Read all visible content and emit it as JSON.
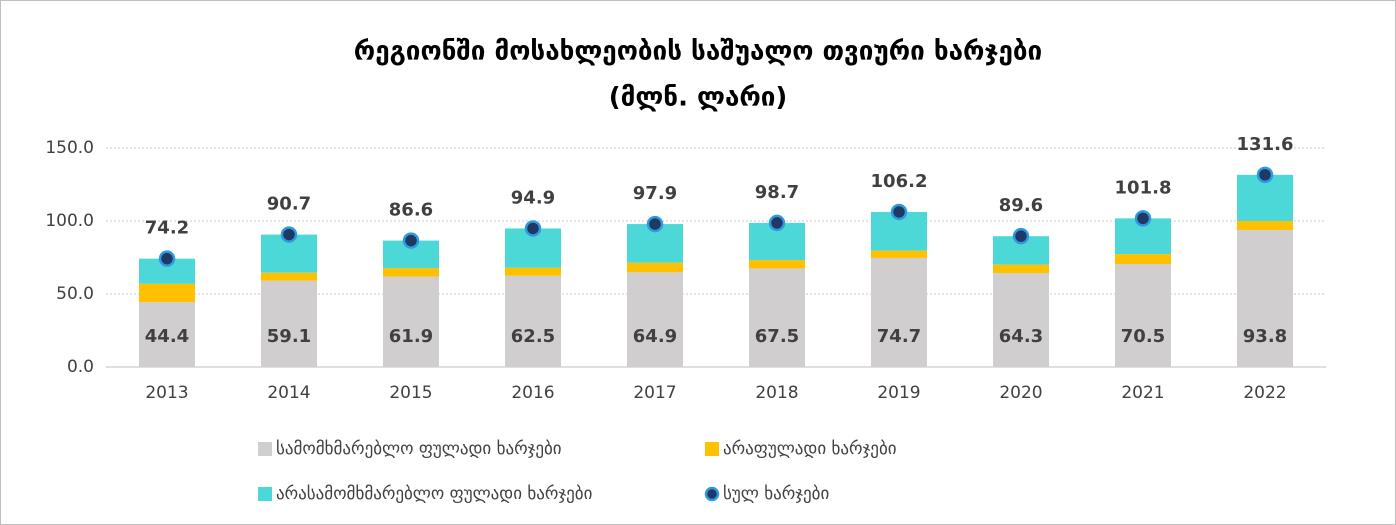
{
  "chart_data": {
    "type": "bar",
    "stacked": true,
    "title": [
      "რეგიონში მოსახლეობის საშუალო თვიური ხარჯები",
      "(მლნ. ლარი)"
    ],
    "categories": [
      "2013",
      "2014",
      "2015",
      "2016",
      "2017",
      "2018",
      "2019",
      "2020",
      "2021",
      "2022"
    ],
    "series": [
      {
        "name": "სამომხმარებლო ფულადი ხარჯები",
        "color": "#d0cece",
        "values": [
          44.4,
          59.1,
          61.9,
          62.5,
          64.9,
          67.5,
          74.7,
          64.3,
          70.5,
          93.8
        ]
      },
      {
        "name": "არაფულადი ხარჯები",
        "color": "#ffc000",
        "values": [
          12.6,
          5.5,
          5.8,
          5.5,
          6.5,
          5.7,
          5.0,
          5.8,
          6.8,
          6.2
        ]
      },
      {
        "name": "არასამომხმარებლო ფულადი ხარჯები",
        "color": "#4dd8d8",
        "values": [
          17.2,
          26.1,
          18.9,
          26.9,
          26.5,
          25.5,
          26.5,
          19.5,
          24.5,
          31.6
        ]
      },
      {
        "name": "სულ ხარჯები",
        "type": "dot",
        "color": "#1f3864",
        "values": [
          74.2,
          90.7,
          86.6,
          94.9,
          97.9,
          98.7,
          106.2,
          89.6,
          101.8,
          131.6
        ]
      }
    ],
    "ylim": [
      0,
      150
    ],
    "yticks": [
      {
        "value": 0,
        "label": "0.0"
      },
      {
        "value": 50,
        "label": "50.0"
      },
      {
        "value": 100,
        "label": "100.0"
      },
      {
        "value": 150,
        "label": "150.0"
      }
    ],
    "grid": true
  }
}
